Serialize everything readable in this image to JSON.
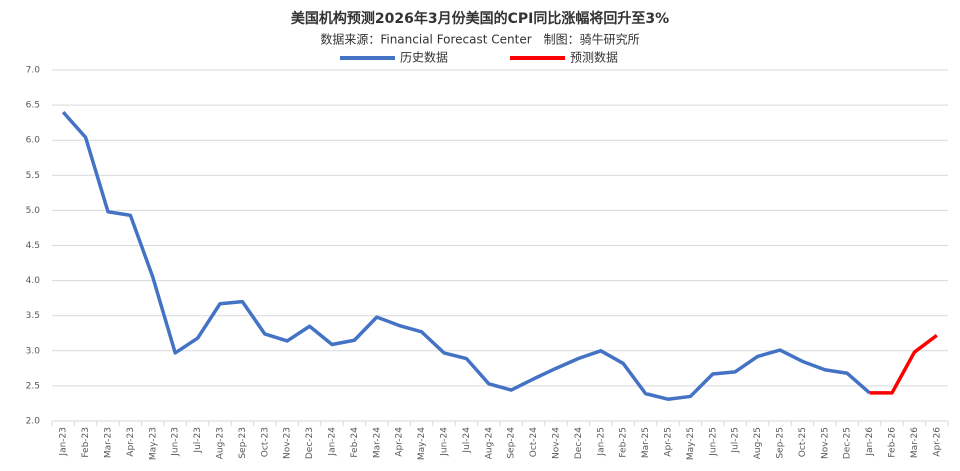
{
  "chart_data": {
    "type": "line",
    "title": "美国机构预测2026年3月份美国的CPI同比涨幅将回升至3%",
    "subtitle": "数据来源：Financial Forecast Center　制图：骑牛研究所",
    "categories": [
      "Jan-23",
      "Feb-23",
      "Mar-23",
      "Apr-23",
      "May-23",
      "Jun-23",
      "Jul-23",
      "Aug-23",
      "Sep-23",
      "Oct-23",
      "Nov-23",
      "Dec-23",
      "Jan-24",
      "Feb-24",
      "Mar-24",
      "Apr-24",
      "May-24",
      "Jun-24",
      "Jul-24",
      "Aug-24",
      "Sep-24",
      "Oct-24",
      "Nov-24",
      "Dec-24",
      "Jan-25",
      "Feb-25",
      "Mar-25",
      "Apr-25",
      "May-25",
      "Jun-25",
      "Jul-25",
      "Aug-25",
      "Sep-25",
      "Oct-25",
      "Nov-25",
      "Dec-25",
      "Jan-26",
      "Feb-26",
      "Mar-26",
      "Apr-26"
    ],
    "series": [
      {
        "name": "历史数据",
        "color": "#4472c4",
        "values": [
          6.4,
          6.04,
          4.98,
          4.93,
          4.05,
          2.97,
          3.18,
          3.67,
          3.7,
          3.24,
          3.14,
          3.35,
          3.09,
          3.15,
          3.48,
          3.36,
          3.27,
          2.97,
          2.89,
          2.53,
          2.44,
          2.6,
          2.75,
          2.89,
          3.0,
          2.82,
          2.39,
          2.31,
          2.35,
          2.67,
          2.7,
          2.92,
          3.01,
          2.85,
          2.73,
          2.68,
          2.4,
          null,
          null,
          null
        ]
      },
      {
        "name": "预测数据",
        "color": "#ff0000",
        "values": [
          null,
          null,
          null,
          null,
          null,
          null,
          null,
          null,
          null,
          null,
          null,
          null,
          null,
          null,
          null,
          null,
          null,
          null,
          null,
          null,
          null,
          null,
          null,
          null,
          null,
          null,
          null,
          null,
          null,
          null,
          null,
          null,
          null,
          null,
          null,
          null,
          2.4,
          2.4,
          2.98,
          3.22
        ]
      }
    ],
    "ylim": [
      2,
      7
    ],
    "yticks": [
      {
        "value": 2,
        "label": "2.0"
      },
      {
        "value": 2.5,
        "label": "2.5"
      },
      {
        "value": 3,
        "label": "3.0"
      },
      {
        "value": 3.5,
        "label": "3.5"
      },
      {
        "value": 4,
        "label": "4.0"
      },
      {
        "value": 4.5,
        "label": "4.5"
      },
      {
        "value": 5,
        "label": "5.0"
      },
      {
        "value": 5.5,
        "label": "5.5"
      },
      {
        "value": 6,
        "label": "6.0"
      },
      {
        "value": 6.5,
        "label": "6.5"
      },
      {
        "value": 7,
        "label": "7.0"
      }
    ],
    "grid": true
  }
}
